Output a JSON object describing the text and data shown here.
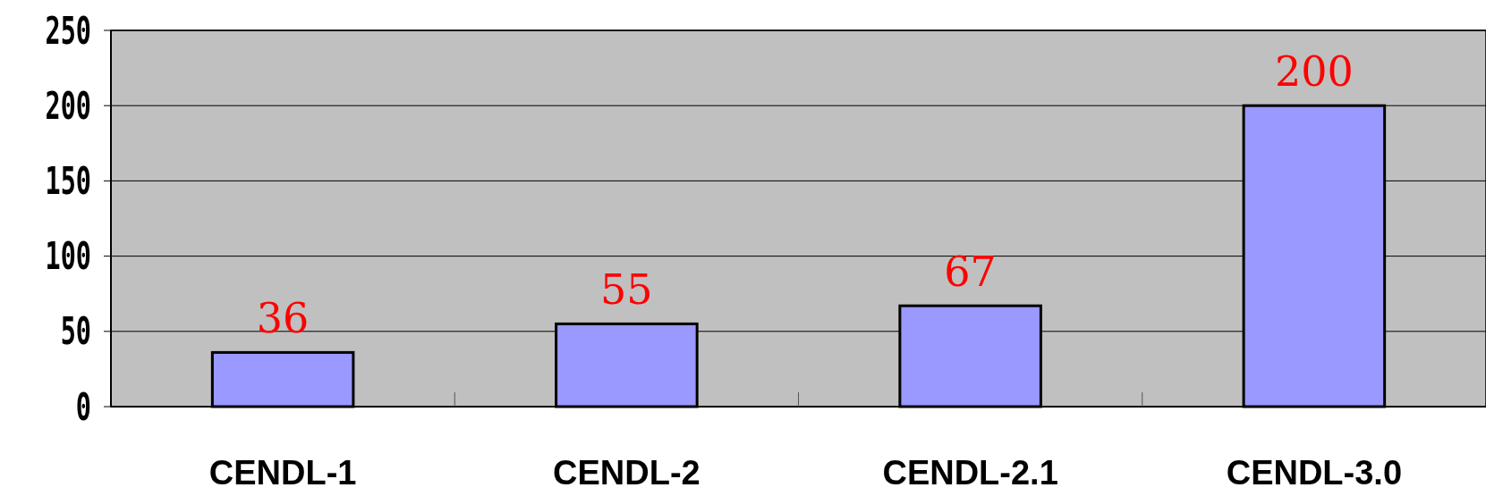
{
  "chart_data": {
    "type": "bar",
    "categories": [
      "CENDL-1",
      "CENDL-2",
      "CENDL-2.1",
      "CENDL-3.0"
    ],
    "values": [
      36,
      55,
      67,
      200
    ],
    "color": "#9999ff",
    "ylim": [
      0,
      250
    ],
    "yticks": [
      0,
      50,
      100,
      150,
      200,
      250
    ],
    "grid": "y",
    "data_labels": true
  }
}
